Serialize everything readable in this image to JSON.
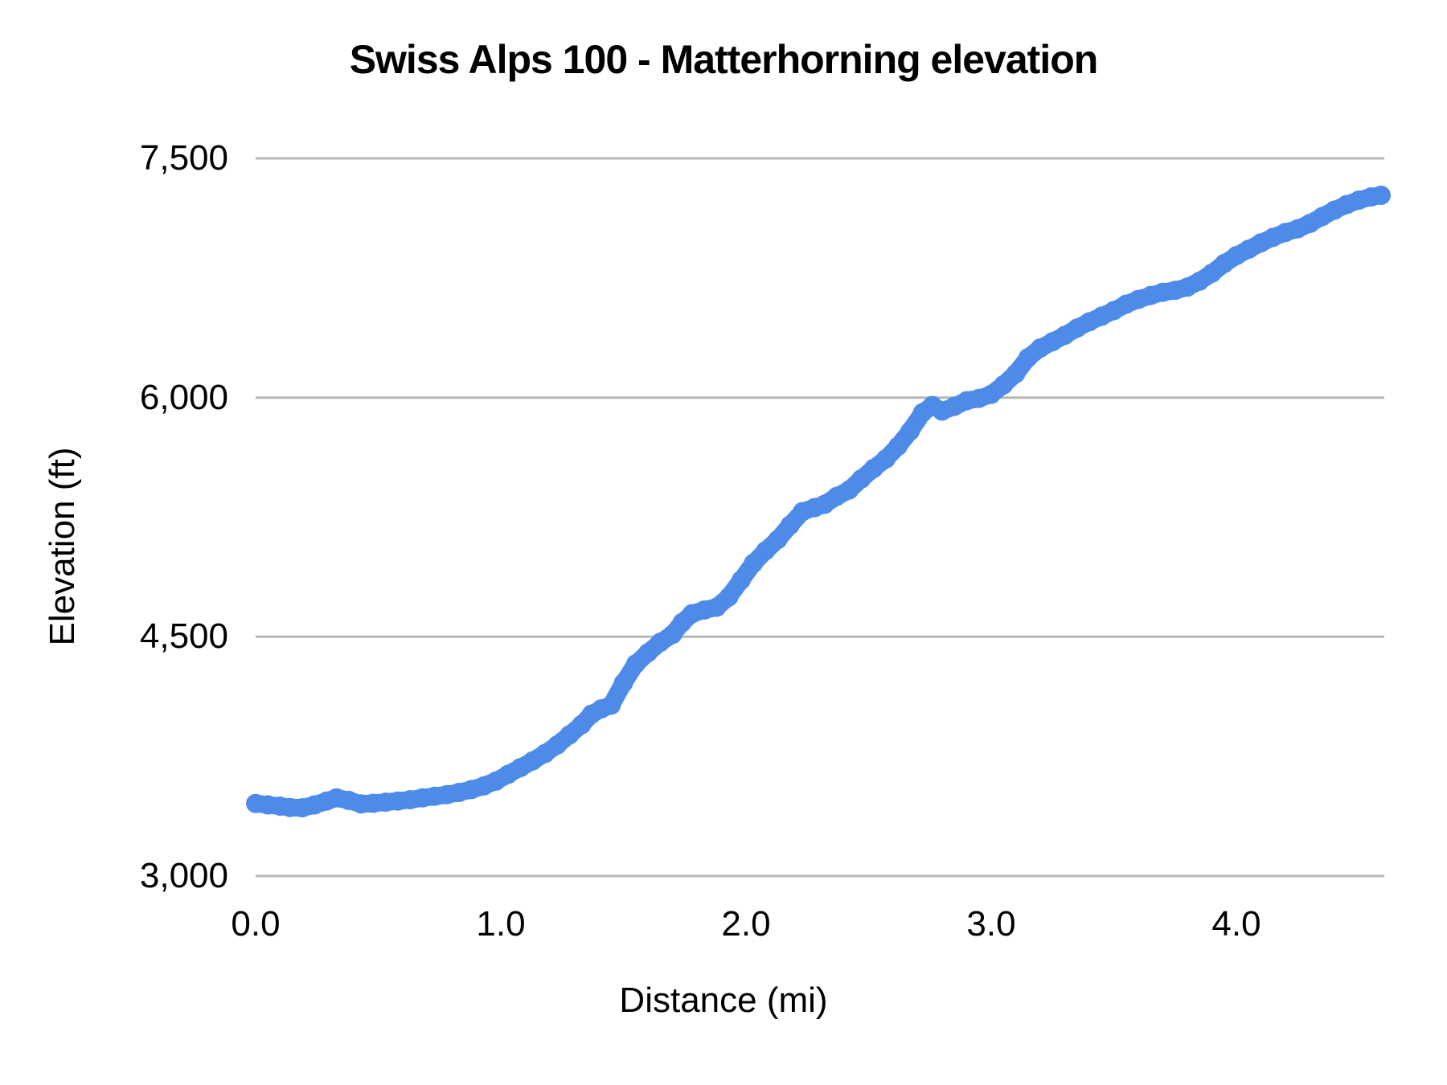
{
  "chart_data": {
    "type": "line",
    "title": "Swiss Alps 100 - Matterhorning elevation",
    "xlabel": "Distance (mi)",
    "ylabel": "Elevation (ft)",
    "xlim": [
      0,
      4.6
    ],
    "ylim": [
      3000,
      7500
    ],
    "grid": "horizontal-only",
    "legend": "none",
    "line_color": "#4e8be8",
    "gridline_color": "#b7b7b7",
    "text_color": "#000000",
    "background_color": "#ffffff",
    "x_ticks": [
      {
        "value": 0.0,
        "label": "0.0"
      },
      {
        "value": 1.0,
        "label": "1.0"
      },
      {
        "value": 2.0,
        "label": "2.0"
      },
      {
        "value": 3.0,
        "label": "3.0"
      },
      {
        "value": 4.0,
        "label": "4.0"
      }
    ],
    "y_ticks": [
      {
        "value": 3000,
        "label": "3,000"
      },
      {
        "value": 4500,
        "label": "4,500"
      },
      {
        "value": 6000,
        "label": "6,000"
      },
      {
        "value": 7500,
        "label": "7,500"
      }
    ],
    "series": [
      {
        "name": "Elevation",
        "points": [
          [
            0.0,
            3455
          ],
          [
            0.05,
            3446
          ],
          [
            0.1,
            3438
          ],
          [
            0.14,
            3430
          ],
          [
            0.19,
            3428
          ],
          [
            0.24,
            3446
          ],
          [
            0.29,
            3470
          ],
          [
            0.33,
            3490
          ],
          [
            0.38,
            3474
          ],
          [
            0.43,
            3452
          ],
          [
            0.48,
            3456
          ],
          [
            0.53,
            3463
          ],
          [
            0.58,
            3470
          ],
          [
            0.63,
            3478
          ],
          [
            0.68,
            3490
          ],
          [
            0.73,
            3500
          ],
          [
            0.78,
            3510
          ],
          [
            0.83,
            3524
          ],
          [
            0.88,
            3542
          ],
          [
            0.93,
            3565
          ],
          [
            0.98,
            3595
          ],
          [
            1.03,
            3638
          ],
          [
            1.08,
            3680
          ],
          [
            1.13,
            3722
          ],
          [
            1.18,
            3768
          ],
          [
            1.23,
            3822
          ],
          [
            1.28,
            3885
          ],
          [
            1.33,
            3950
          ],
          [
            1.37,
            4015
          ],
          [
            1.41,
            4048
          ],
          [
            1.45,
            4072
          ],
          [
            1.5,
            4210
          ],
          [
            1.55,
            4330
          ],
          [
            1.6,
            4400
          ],
          [
            1.65,
            4465
          ],
          [
            1.7,
            4515
          ],
          [
            1.74,
            4590
          ],
          [
            1.78,
            4645
          ],
          [
            1.83,
            4668
          ],
          [
            1.88,
            4685
          ],
          [
            1.93,
            4750
          ],
          [
            1.98,
            4855
          ],
          [
            2.03,
            4960
          ],
          [
            2.08,
            5040
          ],
          [
            2.13,
            5110
          ],
          [
            2.18,
            5200
          ],
          [
            2.23,
            5285
          ],
          [
            2.28,
            5310
          ],
          [
            2.32,
            5330
          ],
          [
            2.37,
            5380
          ],
          [
            2.42,
            5420
          ],
          [
            2.47,
            5490
          ],
          [
            2.52,
            5555
          ],
          [
            2.57,
            5615
          ],
          [
            2.62,
            5695
          ],
          [
            2.67,
            5790
          ],
          [
            2.72,
            5905
          ],
          [
            2.76,
            5950
          ],
          [
            2.8,
            5915
          ],
          [
            2.85,
            5945
          ],
          [
            2.9,
            5980
          ],
          [
            2.95,
            5995
          ],
          [
            3.0,
            6020
          ],
          [
            3.05,
            6080
          ],
          [
            3.1,
            6150
          ],
          [
            3.15,
            6250
          ],
          [
            3.2,
            6310
          ],
          [
            3.25,
            6350
          ],
          [
            3.3,
            6390
          ],
          [
            3.35,
            6435
          ],
          [
            3.4,
            6475
          ],
          [
            3.45,
            6510
          ],
          [
            3.5,
            6545
          ],
          [
            3.55,
            6585
          ],
          [
            3.6,
            6615
          ],
          [
            3.65,
            6640
          ],
          [
            3.7,
            6660
          ],
          [
            3.75,
            6672
          ],
          [
            3.8,
            6692
          ],
          [
            3.85,
            6730
          ],
          [
            3.9,
            6780
          ],
          [
            3.95,
            6840
          ],
          [
            4.0,
            6890
          ],
          [
            4.05,
            6930
          ],
          [
            4.1,
            6970
          ],
          [
            4.15,
            7005
          ],
          [
            4.2,
            7035
          ],
          [
            4.25,
            7058
          ],
          [
            4.3,
            7092
          ],
          [
            4.35,
            7135
          ],
          [
            4.4,
            7175
          ],
          [
            4.45,
            7210
          ],
          [
            4.5,
            7238
          ],
          [
            4.55,
            7258
          ],
          [
            4.59,
            7268
          ]
        ]
      }
    ]
  }
}
